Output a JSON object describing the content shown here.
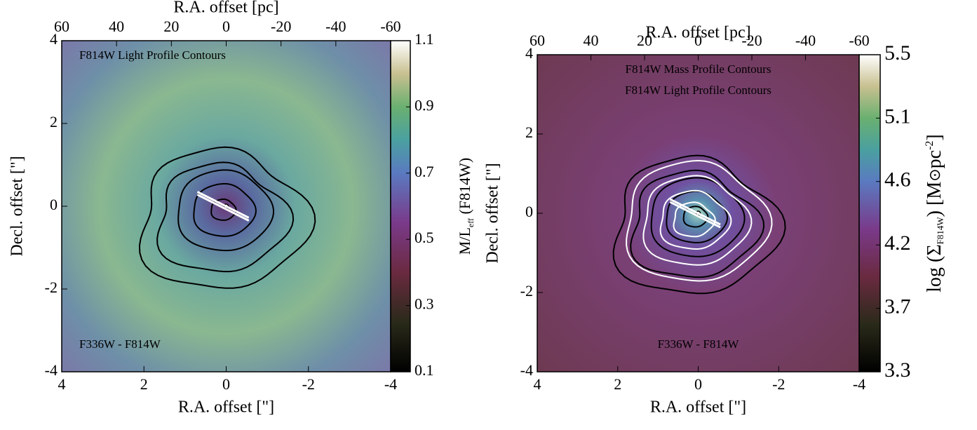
{
  "chart_data": [
    {
      "type": "heatmap",
      "x2label": "R.A. offset [pc]",
      "xlabel": "R.A. offset [\"]",
      "ylabel": "Decl. offset [\"]",
      "xlim": [
        4,
        -4
      ],
      "xticks": [
        4,
        2,
        0,
        -2,
        -4
      ],
      "ylim": [
        -4,
        4
      ],
      "yticks": [
        -4,
        -2,
        0,
        2,
        4
      ],
      "x2lim": [
        60,
        -60
      ],
      "x2ticks": [
        60,
        40,
        20,
        0,
        -20,
        -40,
        -60
      ],
      "colorbar": {
        "lim": [
          0.1,
          1.1
        ],
        "ticks": [
          0.1,
          0.3,
          0.5,
          0.7,
          0.9,
          1.1
        ],
        "label": [
          "M/L",
          "eff",
          " (F814W)"
        ]
      },
      "annotations": [
        {
          "text": "F814W Light Profile Contours",
          "color": "#000000"
        },
        {
          "text": "F336W - F814W",
          "color": "#000000"
        }
      ]
    },
    {
      "type": "heatmap",
      "x2label": "R.A. offset [pc]",
      "xlabel": "R.A. offset [\"]",
      "ylabel": "Decl. offset [\"]",
      "xlim": [
        4,
        -4
      ],
      "xticks": [
        4,
        2,
        0,
        -2,
        -4
      ],
      "ylim": [
        -4,
        4
      ],
      "yticks": [
        -4,
        -2,
        0,
        2,
        4
      ],
      "x2lim": [
        60,
        -60
      ],
      "x2ticks": [
        60,
        40,
        20,
        0,
        -20,
        -40,
        -60
      ],
      "colorbar": {
        "lim": [
          3.3,
          5.5
        ],
        "ticks": [
          3.3,
          {
            "value": 3.74,
            "label": "3.7"
          },
          {
            "value": 4.18,
            "label": "4.2"
          },
          {
            "value": 4.62,
            "label": "4.6"
          },
          {
            "value": 5.06,
            "label": "5.1"
          },
          5.5
        ],
        "label": [
          "log (Σ",
          "F814W",
          ") [M",
          "⊙",
          "pc",
          "-2",
          "]"
        ]
      },
      "annotations": [
        {
          "text": "F814W Mass Profile Contours",
          "color": "#ffffff"
        },
        {
          "text": "F814W Light Profile Contours",
          "color": "#111111"
        },
        {
          "text": "F336W - F814W",
          "color": "#000000"
        }
      ]
    }
  ]
}
